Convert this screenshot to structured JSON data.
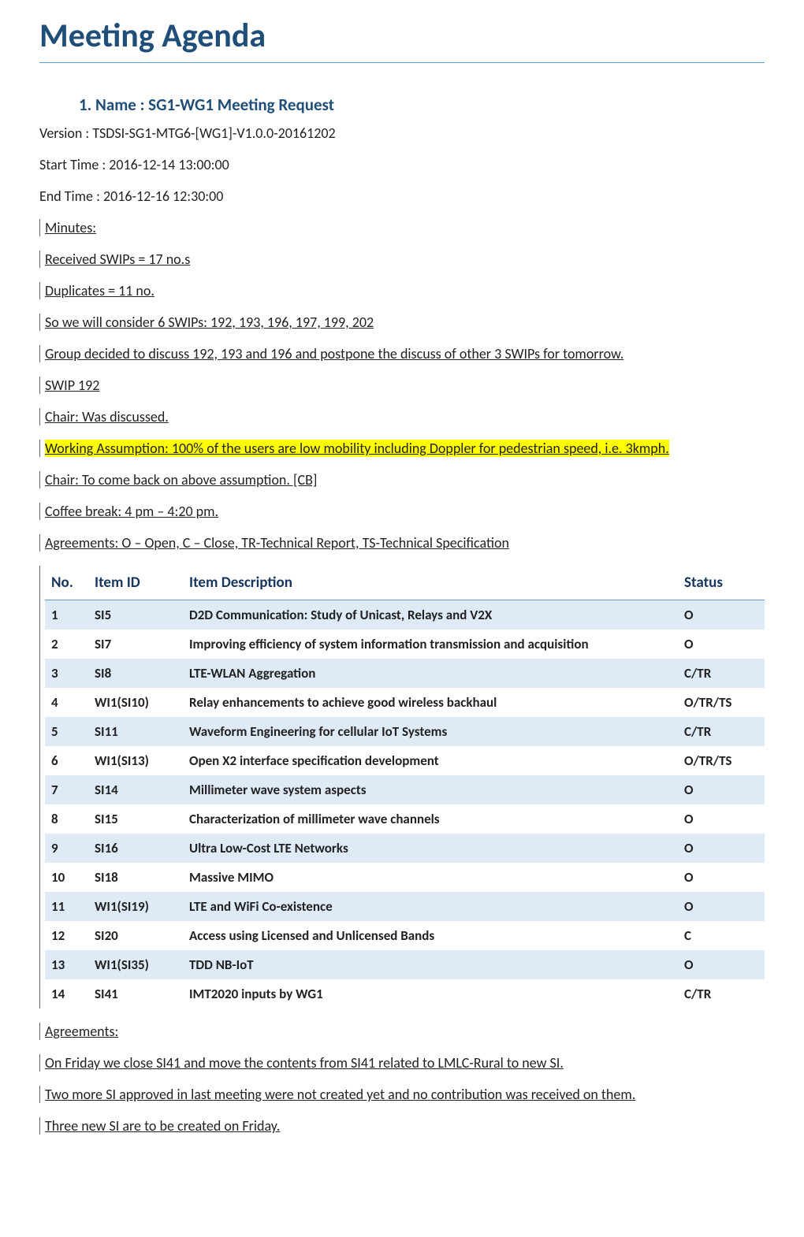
{
  "title": "Meeting Agenda",
  "heading": "1.   Name : SG1-WG1 Meeting Request",
  "meta": {
    "version": "Version : TSDSI-SG1-MTG6-[WG1]-V1.0.0-20161202",
    "start": "Start Time : 2016-12-14 13:00:00",
    "end": "End Time : 2016-12-16 12:30:00"
  },
  "minutes_pre": [
    {
      "text": "Minutes:",
      "highlight": false
    },
    {
      "text": "Received SWIPs = 17 no.s",
      "highlight": false
    },
    {
      "text": "Duplicates = 11 no.",
      "highlight": false
    },
    {
      "text": "So we will consider 6 SWIPs: 192, 193, 196, 197, 199, 202",
      "highlight": false
    },
    {
      "text": "Group decided to discuss 192, 193 and 196 and postpone the discuss of other 3 SWIPs for tomorrow.",
      "highlight": false
    },
    {
      "text": "SWIP 192",
      "highlight": false
    },
    {
      "text": "Chair: Was discussed.",
      "highlight": false
    },
    {
      "text": "Working Assumption: 100% of the users are low mobility including Doppler for pedestrian speed, i.e. 3kmph.",
      "highlight": true
    },
    {
      "text": "Chair: To come back on above assumption. [CB]",
      "highlight": false
    },
    {
      "text": "Coffee break: 4 pm – 4:20 pm.",
      "highlight": false
    },
    {
      "text": "Agreements: O – Open, C – Close, TR-Technical Report, TS-Technical Specification ",
      "highlight": false
    }
  ],
  "table": {
    "columns": [
      "No.",
      "Item ID",
      "Item Description",
      "Status"
    ],
    "rows": [
      [
        "1",
        "SI5",
        "D2D Communication: Study of Unicast, Relays and V2X",
        "O"
      ],
      [
        "2",
        "SI7",
        "Improving efficiency of system information transmission and acquisition",
        "O"
      ],
      [
        "3",
        "SI8",
        "LTE-WLAN Aggregation",
        "C/TR"
      ],
      [
        "4",
        "WI1(SI10)",
        "Relay enhancements to achieve good wireless backhaul",
        "O/TR/TS"
      ],
      [
        "5",
        "SI11",
        "Waveform Engineering for cellular IoT Systems",
        "C/TR"
      ],
      [
        "6",
        "WI1(SI13)",
        "Open X2 interface specification development",
        "O/TR/TS"
      ],
      [
        "7",
        "SI14",
        "Millimeter wave system aspects",
        "O"
      ],
      [
        "8",
        "SI15",
        "Characterization of millimeter wave channels",
        "O"
      ],
      [
        "9",
        "SI16",
        "Ultra Low-Cost LTE Networks",
        "O"
      ],
      [
        "10",
        "SI18",
        "Massive MIMO",
        "O"
      ],
      [
        "11",
        "WI1(SI19)",
        "LTE and WiFi Co-existence",
        "O"
      ],
      [
        "12",
        "SI20",
        "Access using Licensed and Unlicensed Bands",
        "C"
      ],
      [
        "13",
        "WI1(SI35)",
        "TDD NB-IoT",
        "O"
      ],
      [
        "14",
        "SI41",
        "IMT2020 inputs by WG1",
        "C/TR"
      ]
    ]
  },
  "minutes_post": [
    {
      "text": "Agreements:",
      "highlight": false
    },
    {
      "text": "On Friday we close SI41 and move the contents from SI41 related to LMLC-Rural to new SI.",
      "highlight": false
    },
    {
      "text": "Two more SI approved in last meeting were not created yet and no contribution was received on them.",
      "highlight": false
    },
    {
      "text": "Three new SI are to be created on Friday. ",
      "highlight": false
    }
  ],
  "style": {
    "title_color": "#1f4e79",
    "border_color": "#5b9bd5",
    "row_alt_bg": "#deebf7",
    "highlight_bg": "#ffff00",
    "change_bar_color": "#666666",
    "font_family": "Calibri, Arial, sans-serif",
    "title_fontsize": 42,
    "heading_fontsize": 21,
    "body_fontsize": 18
  }
}
